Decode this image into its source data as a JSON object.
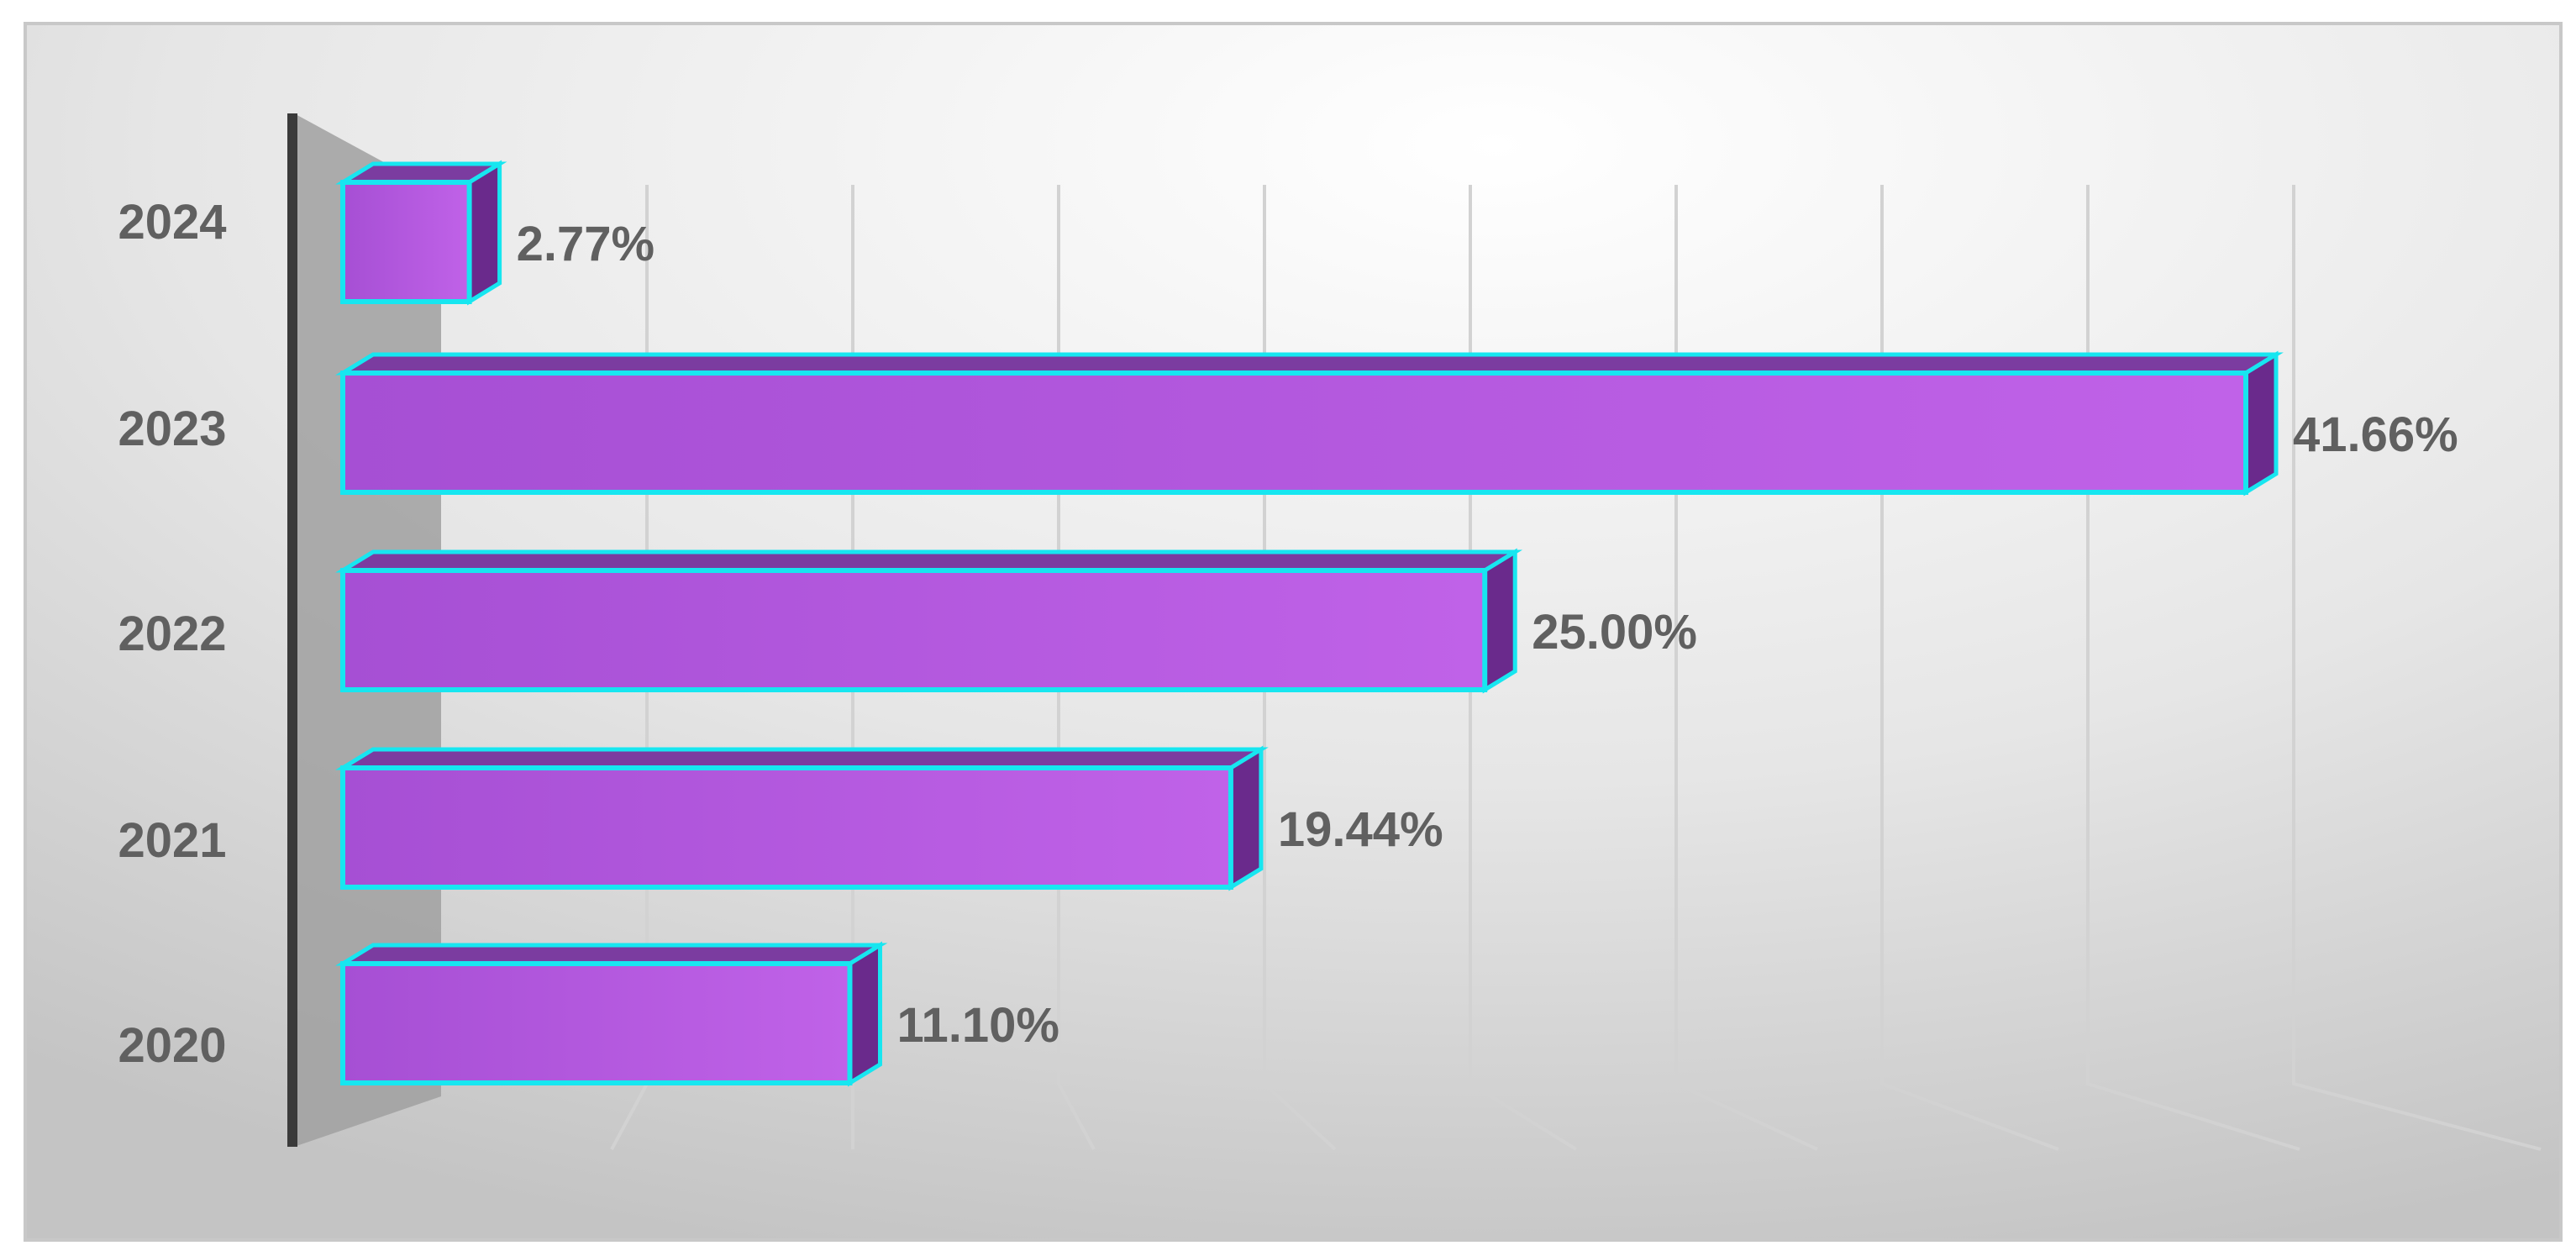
{
  "chart_data": {
    "type": "bar",
    "orientation": "horizontal",
    "three_d": true,
    "categories": [
      "2020",
      "2021",
      "2022",
      "2023",
      "2024"
    ],
    "values": [
      11.1,
      19.44,
      25.0,
      41.66,
      2.77
    ],
    "data_labels": [
      "11.10%",
      "19.44%",
      "25.00%",
      "41.66%",
      "2.77%"
    ],
    "unit": "%",
    "xlim": [
      0,
      45
    ],
    "grid": true,
    "legend": "none",
    "title": "",
    "xlabel": "",
    "ylabel": ""
  },
  "colors": {
    "bar_front": "#a64fd4",
    "bar_front_light": "#c062e8",
    "bar_side": "#6a2a8c",
    "bar_top": "#7b3ca0",
    "bar_outline": "#17e6f0",
    "label_text": "#606060",
    "axis_line": "#3a3a3a",
    "side_wall": "#a0a0a0",
    "gridline": "#d2d2d2",
    "background_light": "#ffffff",
    "background_dark": "#c4c4c4",
    "frame": "#c8c8c8"
  }
}
